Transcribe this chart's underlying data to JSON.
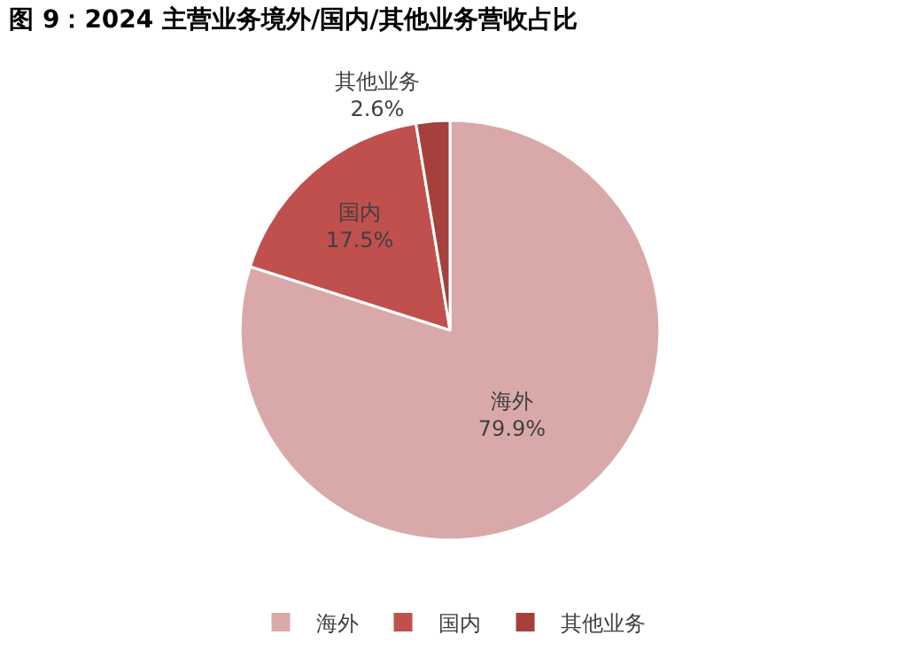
{
  "chart_data": {
    "type": "pie",
    "title": "图 9：2024 主营业务境外/国内/其他业务营收占比",
    "categories": [
      "海外",
      "国内",
      "其他业务"
    ],
    "values": [
      79.9,
      17.5,
      2.6
    ],
    "value_labels": [
      "79.9%",
      "17.5%",
      "2.6%"
    ],
    "colors": [
      "#d9a9a9",
      "#c0504d",
      "#a5403c"
    ],
    "legend": "bottom"
  }
}
